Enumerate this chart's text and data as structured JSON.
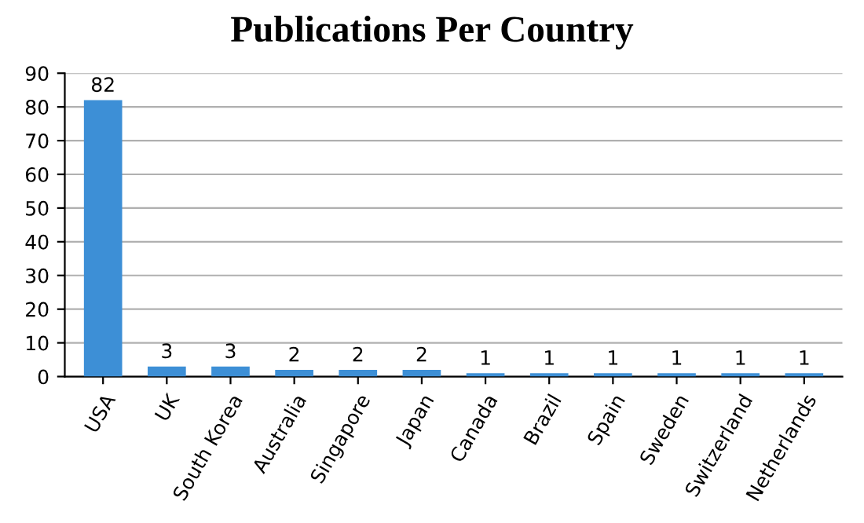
{
  "chart_data": {
    "type": "bar",
    "title": "Publications Per Country",
    "categories": [
      "USA",
      "UK",
      "South Korea",
      "Australia",
      "Singapore",
      "Japan",
      "Canada",
      "Brazil",
      "Spain",
      "Sweden",
      "Switzerland",
      "Netherlands"
    ],
    "values": [
      82,
      3,
      3,
      2,
      2,
      2,
      1,
      1,
      1,
      1,
      1,
      1
    ],
    "color": "#3d8fd6",
    "ylim": [
      0,
      90
    ],
    "yticks": [
      0,
      10,
      20,
      30,
      40,
      50,
      60,
      70,
      80,
      90
    ],
    "grid": "y",
    "data_labels": true
  }
}
